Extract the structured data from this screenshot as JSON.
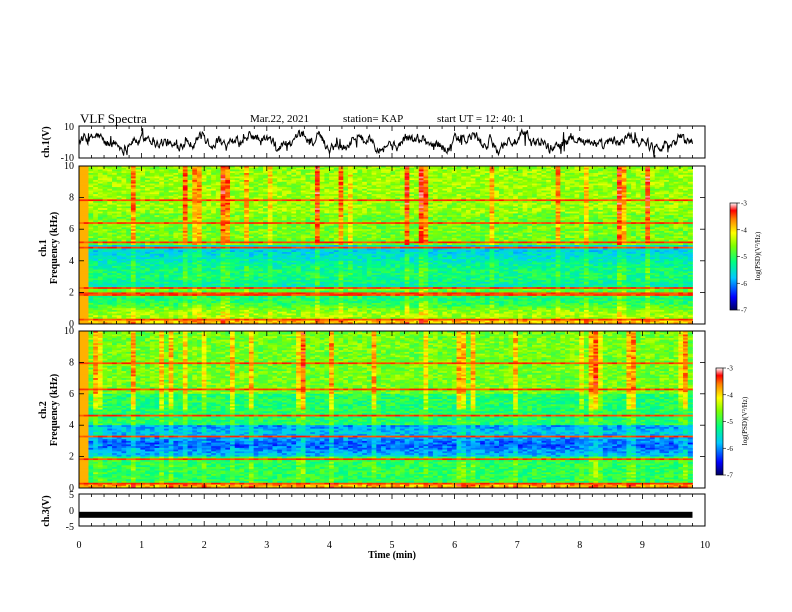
{
  "header": {
    "title": "VLF Spectra",
    "date": "Mar.22, 2021",
    "station": "station= KAP",
    "start": "start  UT  =   12: 40: 1"
  },
  "chart_data": [
    {
      "type": "line",
      "panel": "ch1-waveform",
      "ylabel": "ch.1(V)",
      "xlim": [
        0,
        10
      ],
      "ylim": [
        -10,
        10
      ],
      "yticks": [
        "10",
        "-10"
      ],
      "series": [
        {
          "color": "#000000",
          "description_values": "noisy waveform between about -6 and 6 V over 0 to 9.8 min"
        }
      ]
    },
    {
      "type": "heatmap",
      "panel": "ch1-spectrogram",
      "ylabel_line1": "ch.1",
      "ylabel_line2": "Frequency (kHz)",
      "xlim": [
        0,
        9.8
      ],
      "ylim": [
        0,
        10
      ],
      "yticks": [
        "0",
        "2",
        "4",
        "6",
        "8",
        "10"
      ],
      "colorbar": {
        "label": "log(PSD)(V²/Hz)",
        "range": [
          -7,
          -3
        ],
        "ticks": [
          "-3",
          "-4",
          "-5",
          "-6",
          "-7"
        ]
      }
    },
    {
      "type": "heatmap",
      "panel": "ch2-spectrogram",
      "ylabel_line1": "ch.2",
      "ylabel_line2": "Frequency (kHz)",
      "xlim": [
        0,
        9.8
      ],
      "ylim": [
        0,
        10
      ],
      "yticks": [
        "0",
        "2",
        "4",
        "6",
        "8",
        "10"
      ],
      "colorbar": {
        "label": "log(PSD)(V²/Hz)",
        "range": [
          -7,
          -3
        ],
        "ticks": [
          "-3",
          "-4",
          "-5",
          "-6",
          "-7"
        ]
      }
    },
    {
      "type": "line",
      "panel": "ch3-waveform",
      "ylabel": "ch.3(V)",
      "xlabel": "Time  (min)",
      "xlim": [
        0,
        10
      ],
      "ylim": [
        -5,
        5
      ],
      "yticks": [
        "5",
        "0",
        "-5"
      ],
      "xticks": [
        "0",
        "1",
        "2",
        "3",
        "4",
        "5",
        "6",
        "7",
        "8",
        "9",
        "10"
      ],
      "series": [
        {
          "color": "#000000",
          "constant_value": -1.5,
          "x_end": 9.8
        }
      ]
    }
  ]
}
